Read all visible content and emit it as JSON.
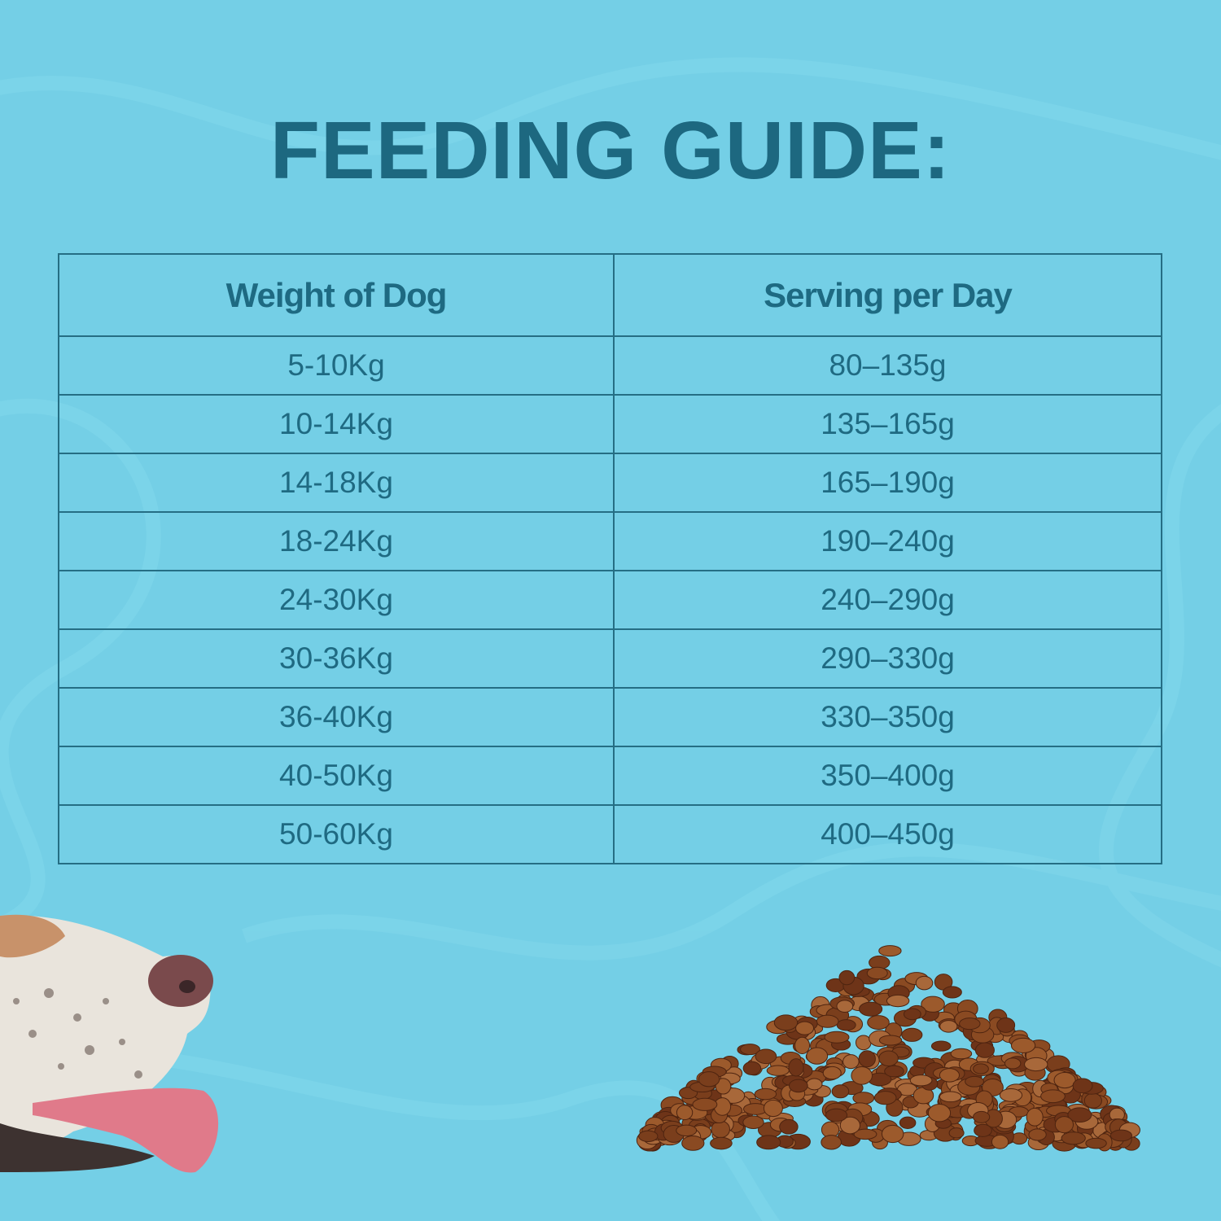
{
  "header": {
    "title": "FEEDING GUIDE:"
  },
  "table": {
    "columns": [
      "Weight of Dog",
      "Serving per Day"
    ],
    "rows": [
      [
        "5-10Kg",
        "80–135g"
      ],
      [
        "10-14Kg",
        "135–165g"
      ],
      [
        "14-18Kg",
        "165–190g"
      ],
      [
        "18-24Kg",
        "190–240g"
      ],
      [
        "24-30Kg",
        "240–290g"
      ],
      [
        "30-36Kg",
        "290–330g"
      ],
      [
        "36-40Kg",
        "330–350g"
      ],
      [
        "40-50Kg",
        "350–400g"
      ],
      [
        "50-60Kg",
        "400–450g"
      ]
    ]
  }
}
